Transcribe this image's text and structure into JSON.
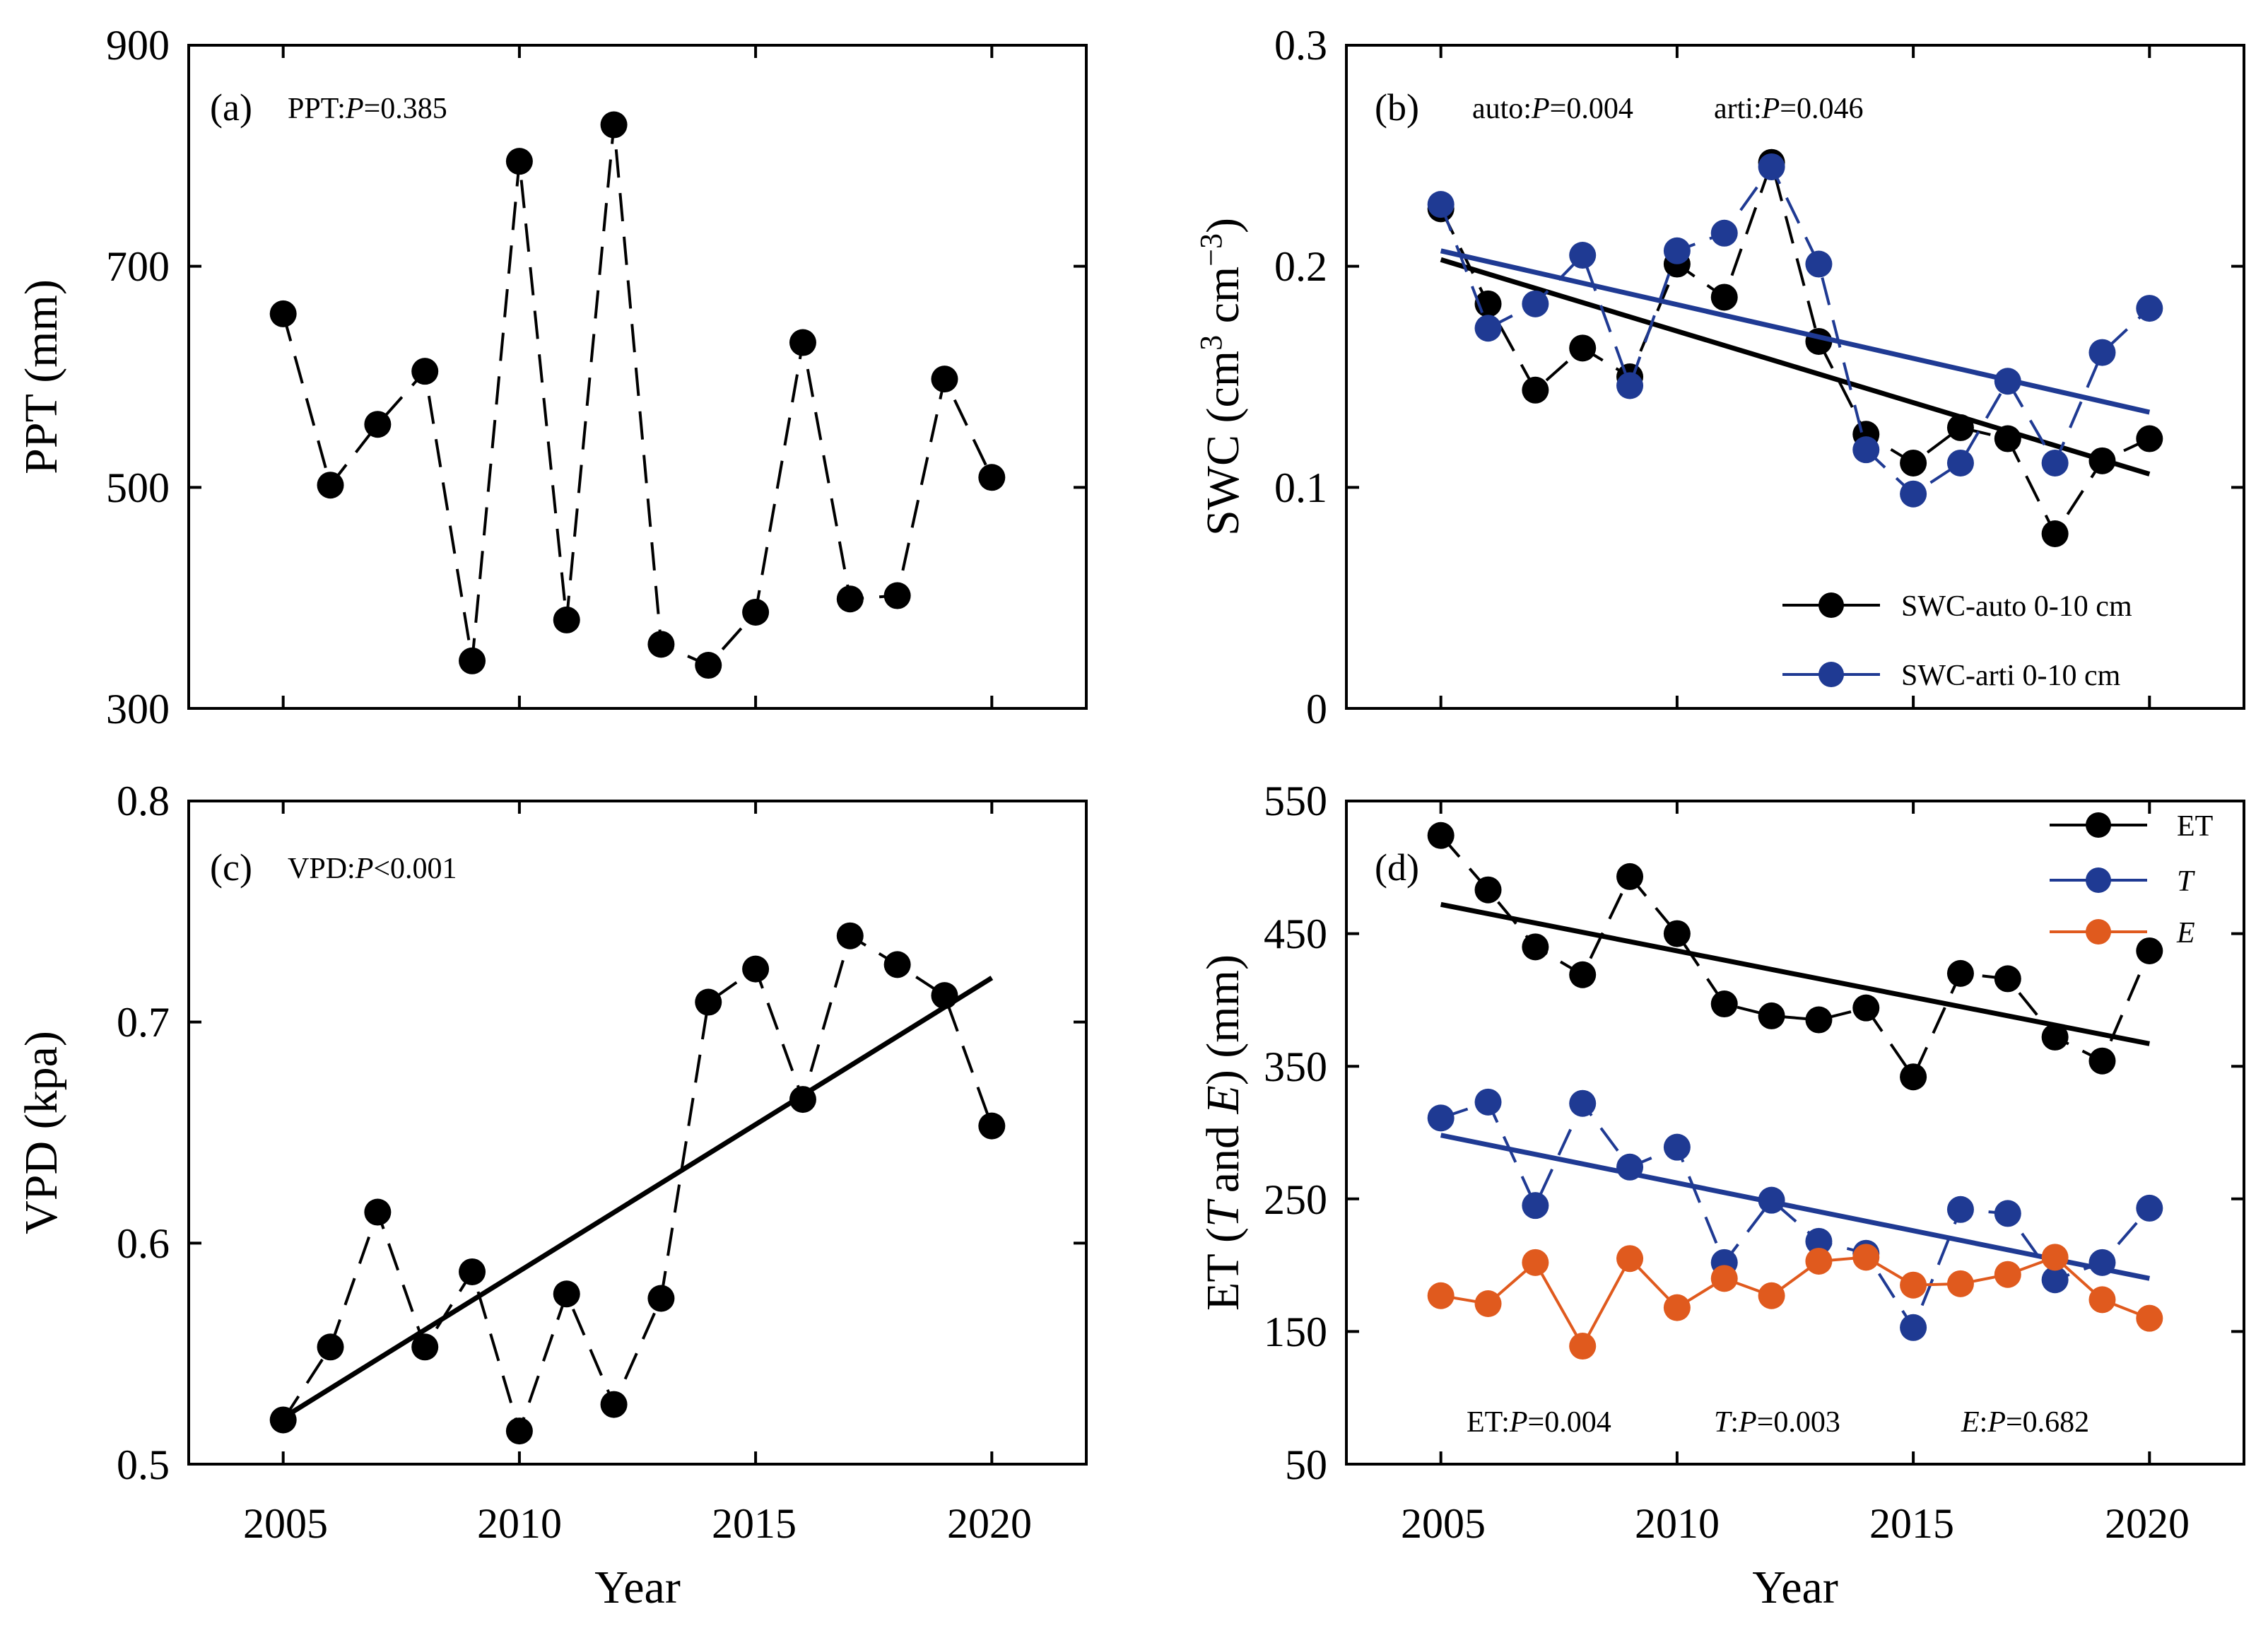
{
  "figure": {
    "shared_x_label": "Year"
  },
  "colors": {
    "black": "#000000",
    "blue": "#1f3a93",
    "orange": "#e05a1e"
  },
  "chart_data": [
    {
      "id": "a",
      "type": "line",
      "panel_label": "(a)",
      "stat_labels": [
        {
          "name": "PPT",
          "p": "=0.385"
        }
      ],
      "ylabel": "PPT (mm)",
      "xlabel": "",
      "xlim": [
        2003,
        2022
      ],
      "ylim": [
        300,
        900
      ],
      "xticks": [
        2005,
        2010,
        2015,
        2020
      ],
      "yticks": [
        300,
        500,
        700,
        900
      ],
      "x": [
        2005,
        2006,
        2007,
        2008,
        2009,
        2010,
        2011,
        2012,
        2013,
        2014,
        2015,
        2016,
        2017,
        2018,
        2019,
        2020
      ],
      "series": [
        {
          "name": "PPT",
          "color": "#000000",
          "style": "dashed",
          "values": [
            657,
            502,
            557,
            605,
            343,
            795,
            380,
            828,
            358,
            339,
            387,
            631,
            399,
            402,
            598,
            509
          ],
          "trend": null
        }
      ],
      "legend": []
    },
    {
      "id": "b",
      "type": "line",
      "panel_label": "(b)",
      "stat_labels": [
        {
          "name": "auto",
          "p": "=0.004"
        },
        {
          "name": "arti",
          "p": "=0.046"
        }
      ],
      "ylabel": "SWC (cm3 cm−3)",
      "ylabel_parts": {
        "pre": "SWC (cm",
        "sup1": "3",
        "mid": " cm",
        "sup2": "−3",
        "post": ")"
      },
      "xlabel": "",
      "xlim": [
        2003,
        2022
      ],
      "ylim": [
        0,
        0.3
      ],
      "xticks": [
        2005,
        2010,
        2015,
        2020
      ],
      "yticks": [
        0,
        0.1,
        0.2,
        0.3
      ],
      "ytick_labels": [
        "0",
        "0.1",
        "0.2",
        "0.3"
      ],
      "x": [
        2005,
        2006,
        2007,
        2008,
        2009,
        2010,
        2011,
        2012,
        2013,
        2014,
        2015,
        2016,
        2017,
        2018,
        2019,
        2020
      ],
      "series": [
        {
          "name": "SWC-auto 0-10 cm",
          "color": "#000000",
          "style": "dashed",
          "values": [
            0.226,
            0.183,
            0.144,
            0.163,
            0.15,
            0.201,
            0.186,
            0.247,
            0.166,
            0.124,
            0.111,
            0.127,
            0.122,
            0.079,
            0.112,
            0.122
          ],
          "trend": [
            0.203,
            0.106
          ]
        },
        {
          "name": "SWC-arti 0-10 cm",
          "color": "#1f3a93",
          "style": "dashed",
          "values": [
            0.228,
            0.172,
            0.183,
            0.205,
            0.146,
            0.207,
            0.215,
            0.245,
            0.201,
            0.117,
            0.097,
            0.111,
            0.148,
            0.111,
            0.161,
            0.181
          ],
          "trend": [
            0.207,
            0.134
          ]
        }
      ],
      "legend": [
        {
          "label": "SWC-auto 0-10 cm",
          "color": "#000000"
        },
        {
          "label": "SWC-arti 0-10 cm",
          "color": "#1f3a93"
        }
      ],
      "legend_position": "bottom-right"
    },
    {
      "id": "c",
      "type": "line",
      "panel_label": "(c)",
      "stat_labels": [
        {
          "name": "VPD",
          "p": "<0.001"
        }
      ],
      "ylabel": "VPD (kpa)",
      "xlabel": "Year",
      "xlim": [
        2003,
        2022
      ],
      "ylim": [
        0.5,
        0.8
      ],
      "xticks": [
        2005,
        2010,
        2015,
        2020
      ],
      "yticks": [
        0.5,
        0.6,
        0.7,
        0.8
      ],
      "ytick_labels": [
        "0.5",
        "0.6",
        "0.7",
        "0.8"
      ],
      "x": [
        2005,
        2006,
        2007,
        2008,
        2009,
        2010,
        2011,
        2012,
        2013,
        2014,
        2015,
        2016,
        2017,
        2018,
        2019,
        2020
      ],
      "series": [
        {
          "name": "VPD",
          "color": "#000000",
          "style": "dashed",
          "values": [
            0.52,
            0.553,
            0.614,
            0.553,
            0.587,
            0.515,
            0.577,
            0.527,
            0.575,
            0.709,
            0.724,
            0.665,
            0.739,
            0.726,
            0.712,
            0.653
          ],
          "trend": [
            0.521,
            0.72
          ]
        }
      ],
      "legend": []
    },
    {
      "id": "d",
      "type": "line",
      "panel_label": "(d)",
      "stat_labels": [
        {
          "name": "ET",
          "p": "=0.004"
        },
        {
          "name": "T",
          "p": "=0.003"
        },
        {
          "name": "E",
          "p": "=0.682"
        }
      ],
      "ylabel": "ET (T and E) (mm)",
      "ylabel_parts": {
        "pre": "ET (",
        "t": "T",
        "and": "and ",
        "e": "E",
        "post": ") (mm)"
      },
      "xlabel": "Year",
      "xlim": [
        2003,
        2022
      ],
      "ylim": [
        50,
        550
      ],
      "xticks": [
        2005,
        2010,
        2015,
        2020
      ],
      "yticks": [
        50,
        150,
        250,
        350,
        450,
        550
      ],
      "x": [
        2005,
        2006,
        2007,
        2008,
        2009,
        2010,
        2011,
        2012,
        2013,
        2014,
        2015,
        2016,
        2017,
        2018,
        2019,
        2020
      ],
      "series": [
        {
          "name": "ET",
          "color": "#000000",
          "style": "dashed",
          "values": [
            524,
            483,
            440,
            419,
            493,
            450,
            397,
            388,
            385,
            394,
            342,
            420,
            416,
            372,
            354,
            437
          ],
          "trend": [
            472,
            367
          ]
        },
        {
          "name": "T",
          "color": "#1f3a93",
          "style": "dashed",
          "values": [
            311,
            323,
            245,
            322,
            274,
            289,
            202,
            249,
            218,
            209,
            153,
            242,
            239,
            189,
            202,
            243
          ],
          "trend": [
            298,
            190
          ]
        },
        {
          "name": "E",
          "color": "#e05a1e",
          "style": "solid",
          "values": [
            177,
            171,
            202,
            139,
            205,
            168,
            190,
            177,
            203,
            206,
            185,
            186,
            193,
            206,
            174,
            160
          ],
          "trend": null
        }
      ],
      "legend": [
        {
          "label": "ET",
          "color": "#000000"
        },
        {
          "label": "T",
          "color": "#1f3a93"
        },
        {
          "label": "E",
          "color": "#e05a1e"
        }
      ],
      "legend_position": "top-right"
    }
  ]
}
